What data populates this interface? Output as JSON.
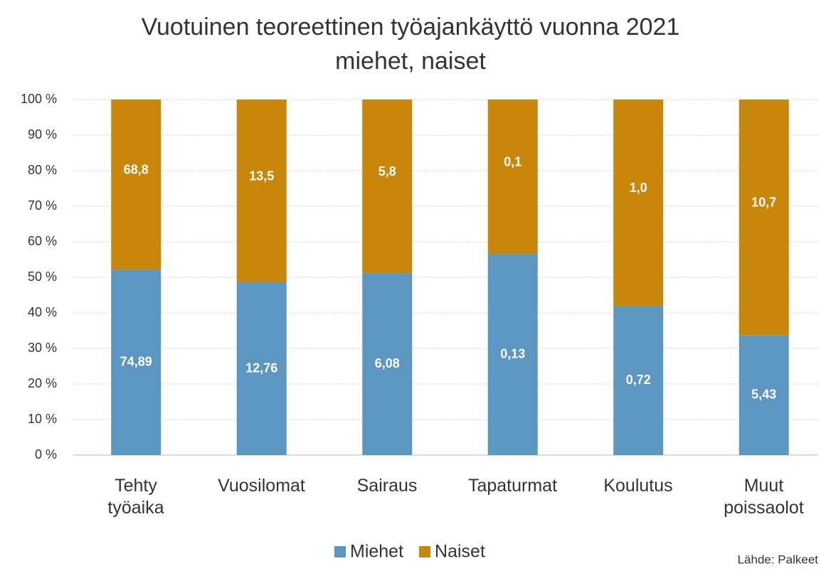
{
  "chart_data": {
    "type": "bar",
    "stacked": "percent",
    "title": "Vuotuinen teoreettinen työajankäyttö vuonna 2021",
    "subtitle": "miehet, naiset",
    "categories": [
      "Tehty\ntyöaika",
      "Vuosilomat",
      "Sairaus",
      "Tapaturmat",
      "Koulutus",
      "Muut\npoissaolot"
    ],
    "series": [
      {
        "name": "Miehet",
        "color": "#5b97c1",
        "values": [
          74.89,
          12.76,
          6.08,
          0.13,
          0.72,
          5.43
        ],
        "value_labels": [
          "74,89",
          "12,76",
          "6,08",
          "0,13",
          "0,72",
          "5,43"
        ]
      },
      {
        "name": "Naiset",
        "color": "#c8860a",
        "values": [
          68.8,
          13.5,
          5.8,
          0.1,
          1.0,
          10.7
        ],
        "value_labels": [
          "68,8",
          "13,5",
          "5,8",
          "0,1",
          "1,0",
          "10,7"
        ]
      }
    ],
    "ylim": [
      0,
      100
    ],
    "yticks": [
      {
        "value": 0,
        "label": "0 %"
      },
      {
        "value": 10,
        "label": "10 %"
      },
      {
        "value": 20,
        "label": "20 %"
      },
      {
        "value": 30,
        "label": "30 %"
      },
      {
        "value": 40,
        "label": "40 %"
      },
      {
        "value": 50,
        "label": "50 %"
      },
      {
        "value": 60,
        "label": "60 %"
      },
      {
        "value": 70,
        "label": "70 %"
      },
      {
        "value": 80,
        "label": "80 %"
      },
      {
        "value": 90,
        "label": "90 %"
      },
      {
        "value": 100,
        "label": "100 %"
      }
    ],
    "grid": true,
    "legend": "bottom",
    "source": "Lähde: Palkeet"
  }
}
